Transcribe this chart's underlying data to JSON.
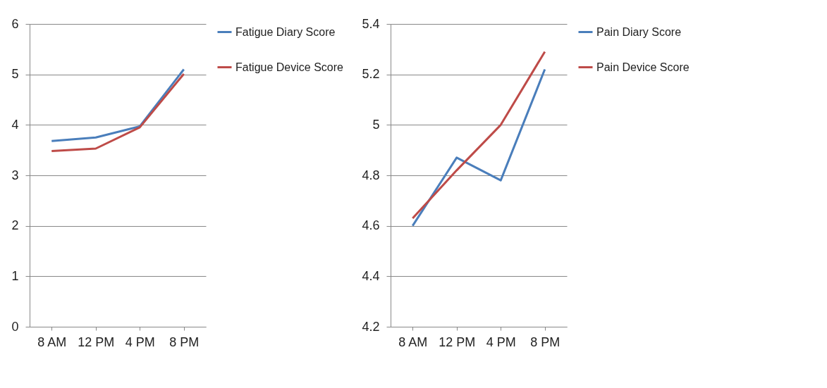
{
  "chart_data": [
    {
      "type": "line",
      "categories": [
        "8 AM",
        "12 PM",
        "4 PM",
        "8 PM"
      ],
      "ylim": [
        0,
        6
      ],
      "yticks": [
        0,
        1,
        2,
        3,
        4,
        5,
        6
      ],
      "grid": "y",
      "legend": "right",
      "series": [
        {
          "name": "Fatigue Diary Score",
          "color": "#4a7ebb",
          "values": [
            3.68,
            3.75,
            3.97,
            5.1
          ]
        },
        {
          "name": "Fatigue Device Score",
          "color": "#be4b48",
          "values": [
            3.48,
            3.53,
            3.95,
            5.01
          ]
        }
      ]
    },
    {
      "type": "line",
      "categories": [
        "8 AM",
        "12 PM",
        "4 PM",
        "8 PM"
      ],
      "ylim": [
        4.2,
        5.4
      ],
      "yticks": [
        4.2,
        4.4,
        4.6,
        4.8,
        5,
        5.2,
        5.4
      ],
      "grid": "y",
      "legend": "right",
      "series": [
        {
          "name": "Pain Diary Score",
          "color": "#4a7ebb",
          "values": [
            4.6,
            4.87,
            4.78,
            5.22
          ]
        },
        {
          "name": "Pain Device Score",
          "color": "#be4b48",
          "values": [
            4.63,
            4.82,
            5.0,
            5.29
          ]
        }
      ]
    }
  ]
}
